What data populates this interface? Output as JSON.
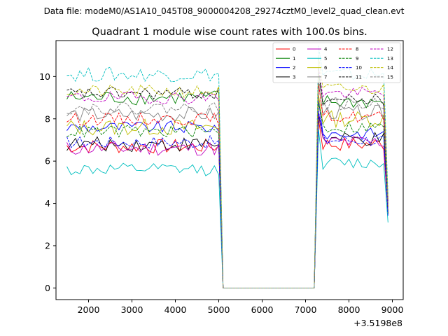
{
  "chart_data": {
    "type": "line",
    "suptitle": "Data file: modeM0/AS1A10_045T08_9000004208_29274cztM0_level2_quad_clean.evt",
    "title": "Quadrant 1 module wise count rates with 100.0s bins.",
    "xlabel": "",
    "ylabel": "",
    "x_offset_label": "+3.5198e8",
    "xlim": [
      1250,
      9250
    ],
    "ylim": [
      -0.55,
      11.7
    ],
    "xticks": [
      2000,
      3000,
      4000,
      5000,
      6000,
      7000,
      8000,
      9000
    ],
    "xtick_labels": [
      "2000",
      "3000",
      "4000",
      "5000",
      "6000",
      "7000",
      "8000",
      "9000"
    ],
    "yticks": [
      0,
      2,
      4,
      6,
      8,
      10
    ],
    "ytick_labels": [
      "0",
      "2",
      "4",
      "6",
      "8",
      "10"
    ],
    "gaps": [
      {
        "start": 5100,
        "end": 7200,
        "value": 0
      }
    ],
    "segments": [
      {
        "start": 1500,
        "end": 5000,
        "step": 100
      },
      {
        "start": 7300,
        "end": 8900,
        "step": 100
      }
    ],
    "legend_location": "upper right",
    "series": [
      {
        "name": "0",
        "color": "#ff0000",
        "dash": "solid",
        "level_a": 6.7,
        "level_b": 6.8,
        "noise": 0.35,
        "edge": 3.6
      },
      {
        "name": "1",
        "color": "#008000",
        "dash": "solid",
        "level_a": 9.0,
        "level_b": 8.8,
        "noise": 0.35,
        "edge": 4.0
      },
      {
        "name": "2",
        "color": "#0000ff",
        "dash": "solid",
        "level_a": 7.6,
        "level_b": 7.3,
        "noise": 0.3,
        "edge": 4.2
      },
      {
        "name": "3",
        "color": "#000000",
        "dash": "solid",
        "level_a": 6.8,
        "level_b": 7.0,
        "noise": 0.35,
        "edge": 3.5
      },
      {
        "name": "4",
        "color": "#bf00bf",
        "dash": "solid",
        "level_a": 6.6,
        "level_b": 6.9,
        "noise": 0.35,
        "edge": 3.7
      },
      {
        "name": "5",
        "color": "#00bfbf",
        "dash": "solid",
        "level_a": 5.6,
        "level_b": 5.9,
        "noise": 0.3,
        "edge": 3.1
      },
      {
        "name": "6",
        "color": "#bfbf00",
        "dash": "solid",
        "level_a": 7.6,
        "level_b": 8.0,
        "noise": 0.4,
        "edge": 4.3
      },
      {
        "name": "7",
        "color": "#808080",
        "dash": "solid",
        "level_a": 8.2,
        "level_b": 8.3,
        "noise": 0.35,
        "edge": 3.9
      },
      {
        "name": "8",
        "color": "#ff0000",
        "dash": "dashed",
        "level_a": 8.0,
        "level_b": 8.1,
        "noise": 0.3,
        "edge": 3.8
      },
      {
        "name": "9",
        "color": "#008000",
        "dash": "dashed",
        "level_a": 7.4,
        "level_b": 7.6,
        "noise": 0.3,
        "edge": 3.6
      },
      {
        "name": "10",
        "color": "#0000ff",
        "dash": "dashed",
        "level_a": 6.9,
        "level_b": 7.0,
        "noise": 0.3,
        "edge": 3.4
      },
      {
        "name": "11",
        "color": "#000000",
        "dash": "dashed",
        "level_a": 9.2,
        "level_b": 8.9,
        "noise": 0.3,
        "edge": 4.1
      },
      {
        "name": "12",
        "color": "#bf00bf",
        "dash": "dashed",
        "level_a": 9.0,
        "level_b": 9.2,
        "noise": 0.3,
        "edge": 4.0
      },
      {
        "name": "13",
        "color": "#00bfbf",
        "dash": "dashed",
        "level_a": 10.1,
        "level_b": 10.1,
        "noise": 0.35,
        "edge": 4.4
      },
      {
        "name": "14",
        "color": "#bfbf00",
        "dash": "dashed",
        "level_a": 9.3,
        "level_b": 9.4,
        "noise": 0.3,
        "edge": 4.2
      },
      {
        "name": "15",
        "color": "#808080",
        "dash": "dashed",
        "level_a": 8.5,
        "level_b": 8.7,
        "noise": 0.3,
        "edge": 3.9
      }
    ]
  }
}
